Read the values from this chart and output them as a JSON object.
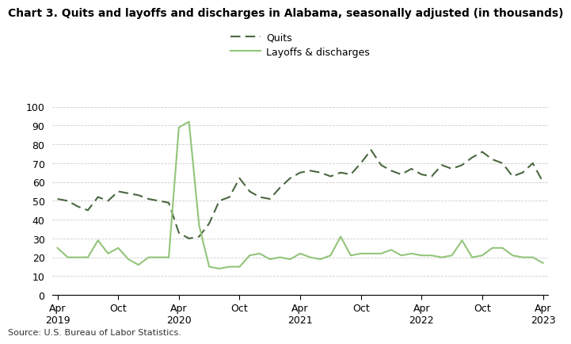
{
  "title": "Chart 3. Quits and layoffs and discharges in Alabama, seasonally adjusted (in thousands)",
  "source": "Source: U.S. Bureau of Labor Statistics.",
  "legend_quits": "Quits",
  "legend_layoffs": "Layoffs & discharges",
  "quits_color": "#4a6741",
  "layoffs_color": "#92c57a",
  "ylim": [
    0,
    100
  ],
  "yticks": [
    0,
    10,
    20,
    30,
    40,
    50,
    60,
    70,
    80,
    90,
    100
  ],
  "x_tick_labels": [
    "Apr\n2019",
    "Oct",
    "Apr\n2020",
    "Oct",
    "Apr\n2021",
    "Oct",
    "Apr\n2022",
    "Oct",
    "Apr\n2023"
  ],
  "x_tick_positions": [
    0,
    6,
    12,
    18,
    24,
    30,
    36,
    42,
    48
  ],
  "quits": [
    51,
    50,
    47,
    45,
    52,
    50,
    55,
    54,
    53,
    51,
    50,
    49,
    33,
    30,
    31,
    38,
    50,
    52,
    62,
    55,
    52,
    51,
    57,
    62,
    65,
    66,
    65,
    63,
    65,
    64,
    70,
    77,
    69,
    66,
    64,
    67,
    64,
    63,
    69,
    67,
    69,
    73,
    76,
    72,
    70,
    63,
    65,
    70,
    60
  ],
  "layoffs": [
    25,
    20,
    20,
    20,
    29,
    22,
    25,
    19,
    16,
    20,
    20,
    20,
    89,
    92,
    37,
    15,
    14,
    15,
    15,
    21,
    22,
    19,
    20,
    19,
    22,
    20,
    19,
    21,
    31,
    21,
    22,
    22,
    22,
    24,
    21,
    22,
    21,
    21,
    20,
    21,
    29,
    20,
    21,
    25,
    25,
    21,
    20,
    20,
    17
  ],
  "title_fontsize": 10,
  "source_fontsize": 8,
  "tick_fontsize": 9,
  "legend_fontsize": 9
}
